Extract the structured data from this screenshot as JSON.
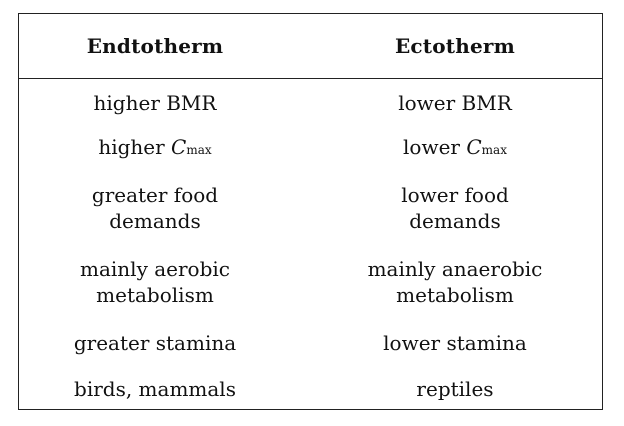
{
  "table": {
    "headers": {
      "left": "Endtotherm",
      "right": "Ectotherm"
    },
    "rows": [
      {
        "left_text": "higher BMR",
        "right_text": "lower BMR"
      },
      {
        "left_prefix": "higher",
        "left_symbol": "C",
        "left_subscript": "max",
        "right_prefix": "lower",
        "right_symbol": "C",
        "right_subscript": "max"
      },
      {
        "left_line1": "greater food",
        "left_line2": "demands",
        "right_line1": "lower food",
        "right_line2": "demands"
      },
      {
        "left_line1": "mainly aerobic",
        "left_line2": "metabolism",
        "right_line1": "mainly anaerobic",
        "right_line2": "metabolism"
      },
      {
        "left_text": "greater stamina",
        "right_text": "lower stamina"
      },
      {
        "left_text": "birds, mammals",
        "right_text": "reptiles"
      }
    ]
  }
}
